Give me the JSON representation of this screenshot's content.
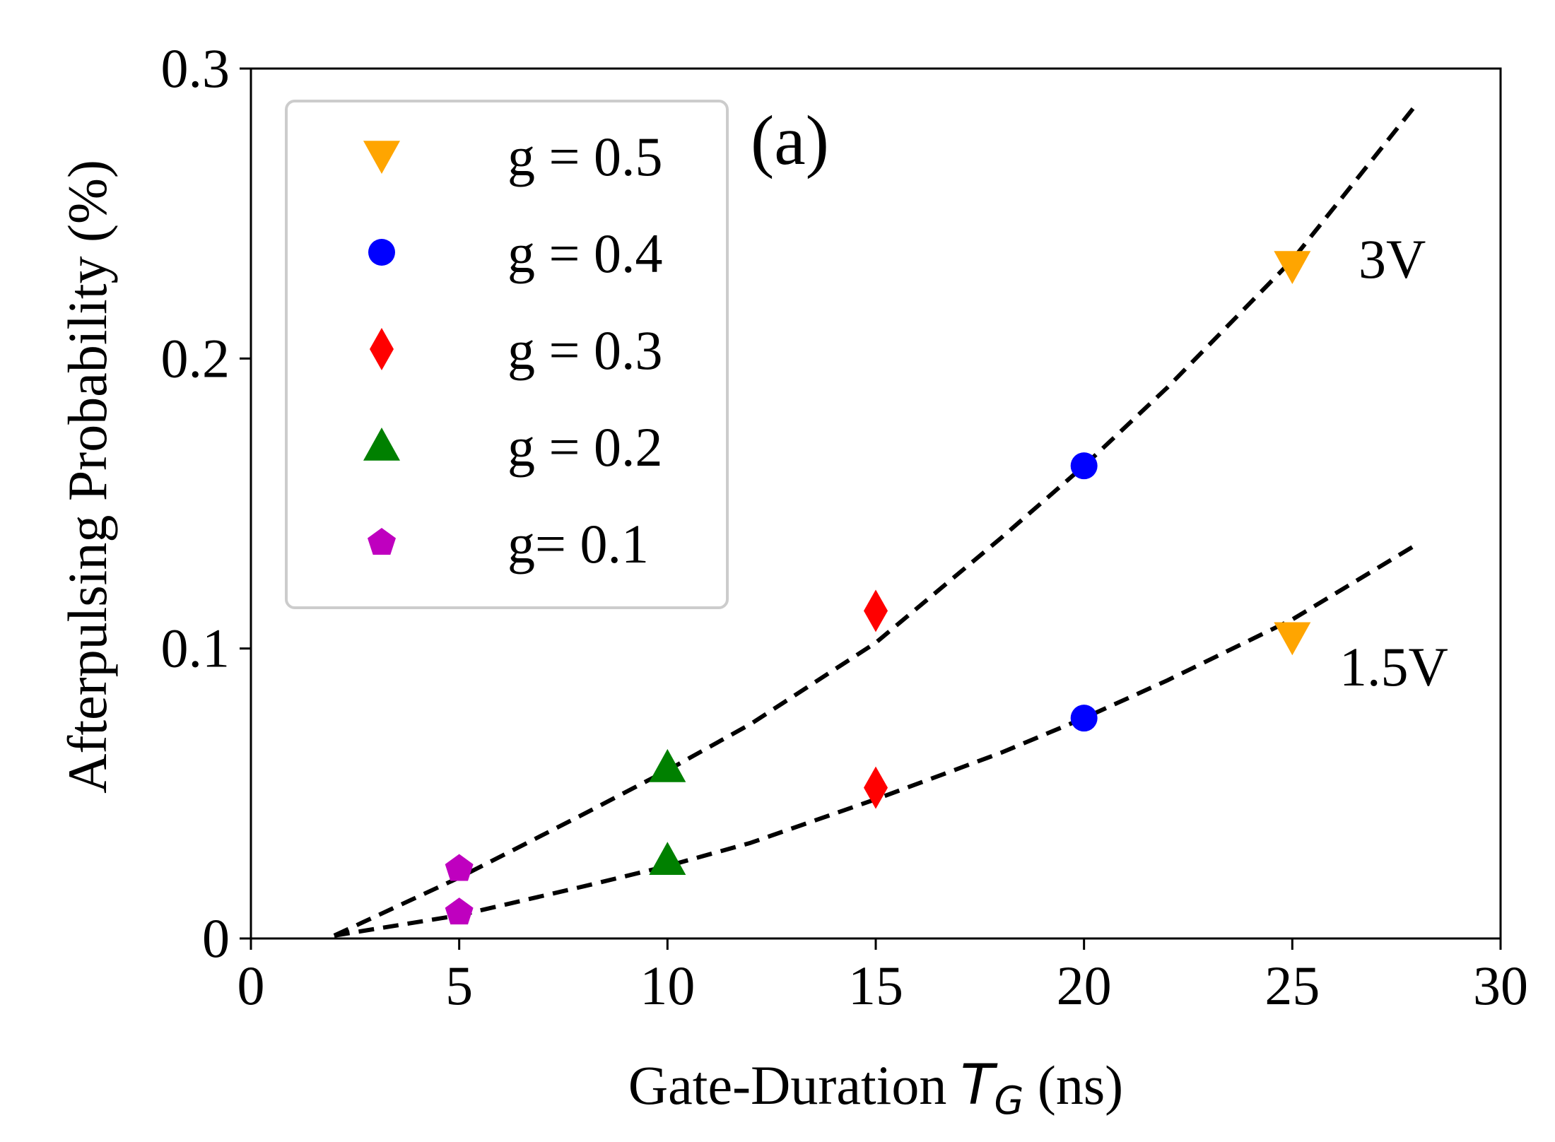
{
  "chart_data": {
    "type": "scatter",
    "panel_label": "(a)",
    "xlabel": {
      "prefix": "Gate-Duration ",
      "symbol": "T",
      "subscript": "G",
      "suffix": " (ns)"
    },
    "ylabel": "Afterpulsing Probability (%)",
    "xlim": [
      0,
      30
    ],
    "ylim": [
      0,
      0.3
    ],
    "xticks": [
      0,
      5,
      10,
      15,
      20,
      25,
      30
    ],
    "xtick_labels": [
      "0",
      "5",
      "10",
      "15",
      "20",
      "25",
      "30"
    ],
    "yticks": [
      0,
      0.1,
      0.2,
      0.3
    ],
    "ytick_labels": [
      "0",
      "0.1",
      "0.2",
      "0.3"
    ],
    "grid": false,
    "legend_position": "top-left",
    "series": [
      {
        "name": "g = 0.5",
        "marker": "triangle-down",
        "color": "#FFA500",
        "points": [
          {
            "x": 25,
            "y": 0.232
          },
          {
            "x": 25,
            "y": 0.104
          }
        ]
      },
      {
        "name": "g = 0.4",
        "marker": "circle",
        "color": "#0000FF",
        "points": [
          {
            "x": 20,
            "y": 0.163
          },
          {
            "x": 20,
            "y": 0.076
          }
        ]
      },
      {
        "name": "g = 0.3",
        "marker": "diamond",
        "color": "#FF0000",
        "points": [
          {
            "x": 15,
            "y": 0.113
          },
          {
            "x": 15,
            "y": 0.052
          }
        ]
      },
      {
        "name": "g = 0.2",
        "marker": "triangle-up",
        "color": "#008000",
        "points": [
          {
            "x": 10,
            "y": 0.059
          },
          {
            "x": 10,
            "y": 0.027
          }
        ]
      },
      {
        "name": "g= 0.1",
        "marker": "pentagon",
        "color": "#BF00BF",
        "points": [
          {
            "x": 5,
            "y": 0.024
          },
          {
            "x": 5,
            "y": 0.009
          }
        ]
      }
    ],
    "fit_curves": [
      {
        "label": "3V",
        "style": "dashed",
        "color": "#000000",
        "x": [
          2,
          5,
          8,
          10,
          12,
          15,
          18,
          20,
          22,
          25,
          28
        ],
        "y": [
          0.001,
          0.021,
          0.043,
          0.058,
          0.074,
          0.102,
          0.138,
          0.163,
          0.19,
          0.234,
          0.288
        ]
      },
      {
        "label": "1.5V",
        "style": "dashed",
        "color": "#000000",
        "x": [
          2,
          5,
          8,
          10,
          12,
          15,
          18,
          20,
          22,
          25,
          28
        ],
        "y": [
          0.001,
          0.008,
          0.018,
          0.025,
          0.033,
          0.048,
          0.064,
          0.076,
          0.089,
          0.11,
          0.136
        ]
      }
    ]
  }
}
